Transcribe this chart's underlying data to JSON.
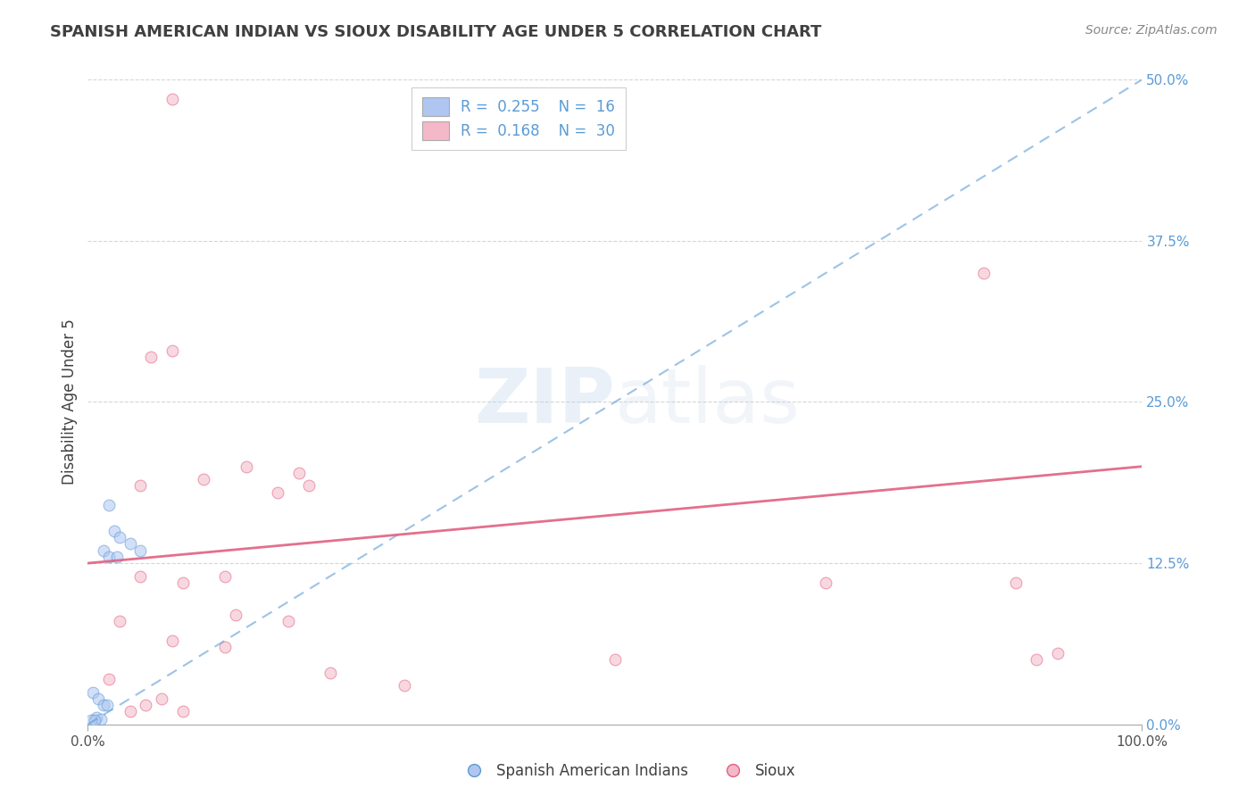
{
  "title": "SPANISH AMERICAN INDIAN VS SIOUX DISABILITY AGE UNDER 5 CORRELATION CHART",
  "source": "Source: ZipAtlas.com",
  "ylabel": "Disability Age Under 5",
  "ytick_values": [
    0.0,
    12.5,
    25.0,
    37.5,
    50.0
  ],
  "xlim": [
    0.0,
    100.0
  ],
  "ylim": [
    0.0,
    50.0
  ],
  "legend_entries": [
    {
      "label": "Spanish American Indians",
      "R": "0.255",
      "N": "16",
      "color": "#aec6f0",
      "line_color": "#5b9bd5"
    },
    {
      "label": "Sioux",
      "R": "0.168",
      "N": "30",
      "color": "#f4b8c8",
      "line_color": "#e06080"
    }
  ],
  "watermark_zip": "ZIP",
  "watermark_atlas": "atlas",
  "blue_scatter_x": [
    2.0,
    2.5,
    3.0,
    4.0,
    5.0,
    1.5,
    2.0,
    2.8,
    0.5,
    1.0,
    1.5,
    1.8,
    0.8,
    1.2,
    0.3,
    0.6
  ],
  "blue_scatter_y": [
    17.0,
    15.0,
    14.5,
    14.0,
    13.5,
    13.5,
    13.0,
    13.0,
    2.5,
    2.0,
    1.5,
    1.5,
    0.5,
    0.4,
    0.3,
    0.3
  ],
  "pink_scatter_x": [
    8.0,
    6.0,
    8.0,
    15.0,
    20.0,
    5.0,
    11.0,
    18.0,
    21.0,
    5.0,
    9.0,
    13.0,
    14.0,
    19.0,
    3.0,
    8.0,
    13.0,
    50.0,
    70.0,
    85.0,
    88.0,
    92.0,
    90.0,
    23.0,
    30.0,
    2.0,
    4.0,
    5.5,
    7.0,
    9.0
  ],
  "pink_scatter_y": [
    48.5,
    28.5,
    29.0,
    20.0,
    19.5,
    18.5,
    19.0,
    18.0,
    18.5,
    11.5,
    11.0,
    11.5,
    8.5,
    8.0,
    8.0,
    6.5,
    6.0,
    5.0,
    11.0,
    35.0,
    11.0,
    5.5,
    5.0,
    4.0,
    3.0,
    3.5,
    1.0,
    1.5,
    2.0,
    1.0
  ],
  "blue_trend_x": [
    0.0,
    100.0
  ],
  "blue_trend_y": [
    0.0,
    50.0
  ],
  "pink_trend_x": [
    0.0,
    100.0
  ],
  "pink_trend_y": [
    12.5,
    20.0
  ],
  "background_color": "#ffffff",
  "grid_color": "#cccccc",
  "title_color": "#404040",
  "scatter_alpha": 0.55,
  "scatter_size": 85
}
